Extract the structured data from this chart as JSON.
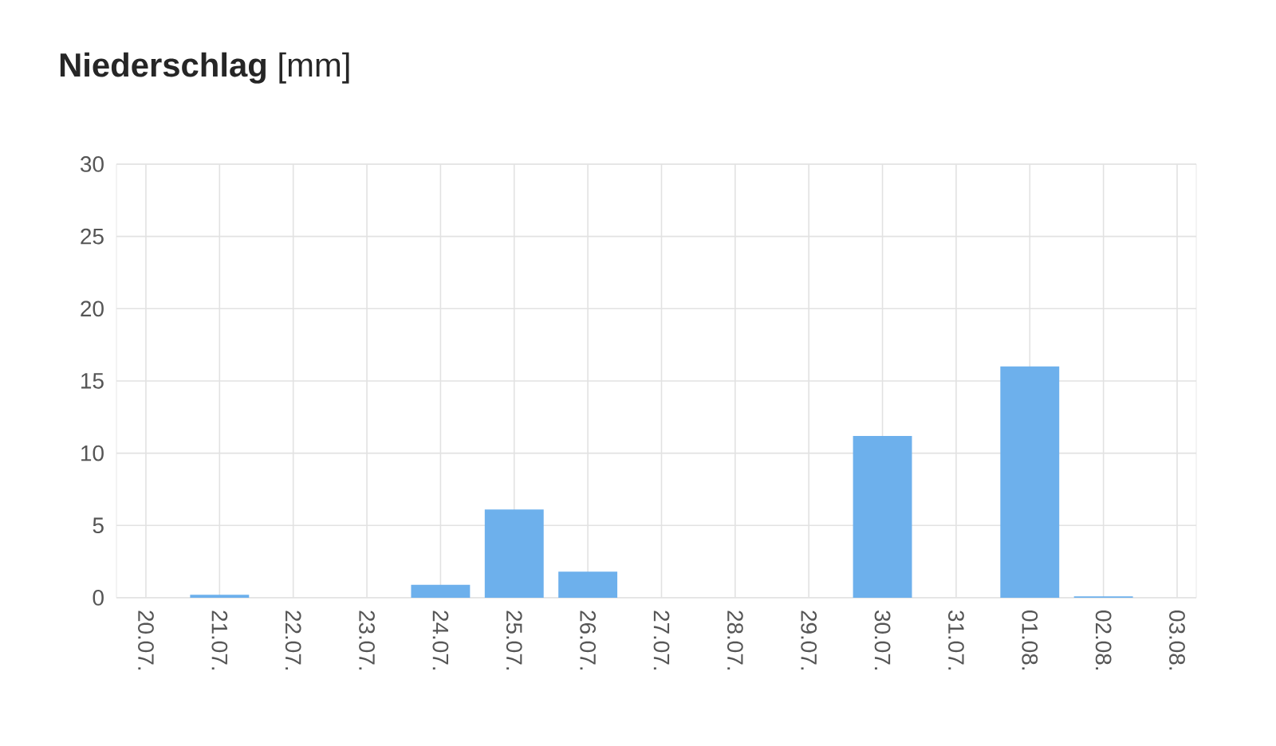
{
  "chart_data": {
    "type": "bar",
    "title": "**Niederschlag** [mm]",
    "categories": [
      "20.07.",
      "21.07.",
      "22.07.",
      "23.07.",
      "24.07.",
      "25.07.",
      "26.07.",
      "27.07.",
      "28.07.",
      "29.07.",
      "30.07.",
      "31.07.",
      "01.08.",
      "02.08.",
      "03.08."
    ],
    "values": [
      0,
      0.2,
      0,
      0,
      0.9,
      6.1,
      1.8,
      0,
      0,
      0,
      11.2,
      0,
      16.0,
      0.1,
      0
    ],
    "color": "#6db0ec",
    "ylim": [
      0,
      30
    ],
    "yticks": [
      0,
      5,
      10,
      15,
      20,
      25,
      30
    ],
    "grid": true
  }
}
